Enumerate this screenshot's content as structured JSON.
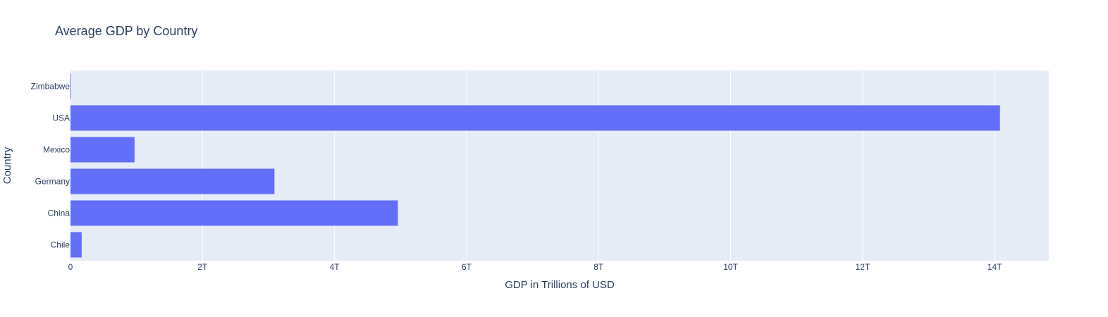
{
  "chart_data": {
    "type": "bar",
    "orientation": "horizontal",
    "title": "Average GDP by Country",
    "xlabel": "GDP in Trillions of USD",
    "ylabel": "Country",
    "categories": [
      "Chile",
      "China",
      "Germany",
      "Mexico",
      "USA",
      "Zimbabwe"
    ],
    "values": [
      170000000000,
      4960000000000,
      3090000000000,
      970000000000,
      14080000000000,
      10000000000
    ],
    "xlim": [
      0,
      14820000000000
    ],
    "x_ticks": [
      0,
      2000000000000,
      4000000000000,
      6000000000000,
      8000000000000,
      10000000000000,
      12000000000000,
      14000000000000
    ],
    "x_tick_labels": [
      "0",
      "2T",
      "4T",
      "6T",
      "8T",
      "10T",
      "12T",
      "14T"
    ],
    "grid": true,
    "legend": "none",
    "colors": {
      "bar": "#636efa",
      "plot_bg": "#e5ecf6",
      "grid": "#ffffff",
      "text": "#2a3f5f"
    }
  }
}
